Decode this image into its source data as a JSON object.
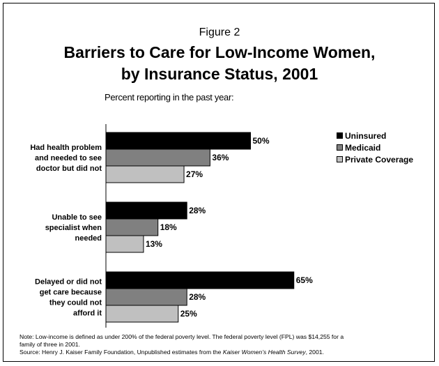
{
  "figure_label": "Figure 2",
  "title_line1": "Barriers to Care for Low-Income Women,",
  "title_line2": "by Insurance Status, 2001",
  "subtitle": "Percent reporting in the past year:",
  "note": {
    "line1": "Note:  Low-income is defined as under 200% of the federal poverty level.  The federal poverty level (FPL) was $14,255 for a",
    "line2": "family of three in 2001.",
    "source_prefix": "Source: Henry J. Kaiser Family Foundation, Unpublished estimates from the ",
    "source_italic": "Kaiser Women’s Health Survey",
    "source_suffix": ", 2001."
  },
  "chart_data": {
    "type": "bar",
    "orientation": "horizontal",
    "categories": [
      [
        "Had health problem",
        "and needed to see",
        "doctor but did not"
      ],
      [
        "Unable to see",
        "specialist when",
        "needed"
      ],
      [
        "Delayed or did not",
        "get care because",
        "they could not",
        "afford it"
      ]
    ],
    "series": [
      {
        "name": "Uninsured",
        "color": "#000000",
        "values": [
          50,
          28,
          65
        ]
      },
      {
        "name": "Medicaid",
        "color": "#808080",
        "values": [
          36,
          18,
          28
        ]
      },
      {
        "name": "Private Coverage",
        "color": "#c0c0c0",
        "values": [
          27,
          13,
          25
        ]
      }
    ],
    "value_suffix": "%",
    "xlim": [
      0,
      100
    ],
    "grid": false,
    "legend_position": "top-right"
  }
}
